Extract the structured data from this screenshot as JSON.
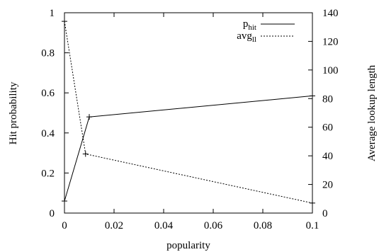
{
  "chart_data": {
    "type": "line",
    "xlabel": "popularity",
    "ylabel_left": "Hit probability",
    "ylabel_right": "Average lookup length",
    "xlim": [
      0,
      0.1
    ],
    "ylim_left": [
      0,
      1
    ],
    "ylim_right": [
      0,
      140
    ],
    "x_ticks": [
      "0",
      "0.02",
      "0.04",
      "0.06",
      "0.08",
      "0.1"
    ],
    "y_ticks_left": [
      "0",
      "0.2",
      "0.4",
      "0.6",
      "0.8",
      "1"
    ],
    "y_ticks_right": [
      "0",
      "20",
      "40",
      "60",
      "80",
      "100",
      "120",
      "140"
    ],
    "legend_placement": "top-right",
    "grid": false,
    "series": [
      {
        "name_main": "p",
        "name_sub": "hit",
        "axis": "left",
        "line_style": "solid",
        "x": [
          0,
          0.01,
          0.1
        ],
        "y": [
          0.06,
          0.48,
          0.585
        ]
      },
      {
        "name_main": "avg",
        "name_sub": "ll",
        "axis": "right",
        "line_style": "dotted",
        "x": [
          0,
          0.0085,
          0.1
        ],
        "y": [
          134,
          41.3,
          7
        ]
      }
    ]
  }
}
